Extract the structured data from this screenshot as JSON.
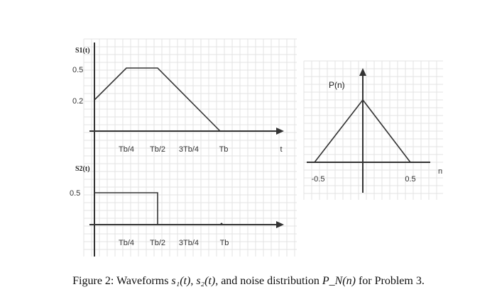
{
  "diagram": {
    "s1": {
      "label": "S1(t)",
      "y_ticks": [
        "0.5",
        "0.2"
      ],
      "x_ticks": [
        "Tb/4",
        "Tb/2",
        "3Tb/4",
        "Tb"
      ],
      "x_axis_label": "t",
      "points": [
        [
          0,
          0.2
        ],
        [
          0.25,
          0.5
        ],
        [
          0.5,
          0.5
        ],
        [
          1.0,
          0
        ]
      ]
    },
    "s2": {
      "label": "S2(t)",
      "y_ticks": [
        "0.5"
      ],
      "x_ticks": [
        "Tb/4",
        "Tb/2",
        "3Tb/4",
        "Tb"
      ],
      "points": [
        [
          0,
          0.5
        ],
        [
          0.5,
          0.5
        ],
        [
          0.5,
          0
        ]
      ]
    },
    "pn": {
      "label": "P(n)",
      "x_ticks": [
        "-0.5",
        "0.5"
      ],
      "x_axis_label": "n",
      "points": [
        [
          -0.5,
          0
        ],
        [
          0,
          1
        ],
        [
          0.5,
          0
        ]
      ]
    },
    "grid_color": "#e3e3e3",
    "line_color": "#333333"
  },
  "caption": {
    "prefix": "Figure 2: Waveforms ",
    "s1": "s₁(t)",
    "sep": ", ",
    "s2": "s₂(t)",
    "middle": ", and noise distribution ",
    "pn": "P_N(n)",
    "suffix": " for Problem 3."
  }
}
